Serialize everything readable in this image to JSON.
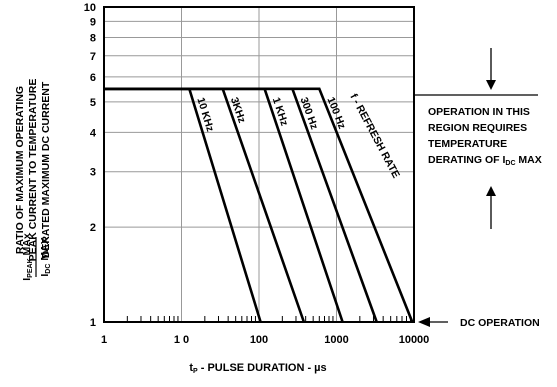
{
  "chart_data": {
    "type": "line",
    "title": "",
    "xlabel": "tP - PULSE DURATION - µs",
    "xlabel_parts": {
      "t": "t",
      "sub": "P",
      "rest": " - PULSE DURATION - µs"
    },
    "ylabel_lines": [
      "RATIO OF MAXIMUM OPERATING",
      "PEAK CURRENT TO TEMPERATURE",
      "DERATED MAXIMUM DC CURRENT"
    ],
    "ylabel_fraction": {
      "num": "I",
      "num_sub": "PEAK",
      "num_rest": " MAx",
      "den": "I",
      "den_sub": "DC",
      "den_rest": " MAX"
    },
    "x_scale": "log",
    "y_scale": "log",
    "xlim": [
      1,
      10000
    ],
    "ylim": [
      1,
      10
    ],
    "x_ticks": [
      "1",
      "1 0",
      "100",
      "1000",
      "10000"
    ],
    "y_ticks": [
      "1",
      "2",
      "3",
      "4",
      "5",
      "6",
      "7",
      "8",
      "9",
      "10"
    ],
    "grid": true,
    "plateau_value": 5.5,
    "series": [
      {
        "name": "10 KHz",
        "x": [
          1,
          12.6,
          105
        ],
        "y": [
          5.5,
          5.5,
          1
        ]
      },
      {
        "name": "3KHz",
        "x": [
          1,
          34,
          380
        ],
        "y": [
          5.5,
          5.5,
          1
        ]
      },
      {
        "name": "1 KHz",
        "x": [
          1,
          118,
          1200
        ],
        "y": [
          5.5,
          5.5,
          1
        ]
      },
      {
        "name": "300 Hz",
        "x": [
          1,
          270,
          3300
        ],
        "y": [
          5.5,
          5.5,
          1
        ]
      },
      {
        "name": "100 Hz",
        "x": [
          1,
          600,
          9500
        ],
        "y": [
          5.5,
          5.5,
          1
        ]
      }
    ],
    "series_caption": "f - REFRESH RATE",
    "annotations": {
      "region_lines": [
        "OPERATION IN THIS",
        "REGION REQUIRES",
        "TEMPERATURE"
      ],
      "region_last": {
        "pre": "DERATING OF I",
        "sub": "DC",
        "post": " MAX"
      },
      "dc_operation": "DC OPERATION"
    }
  }
}
